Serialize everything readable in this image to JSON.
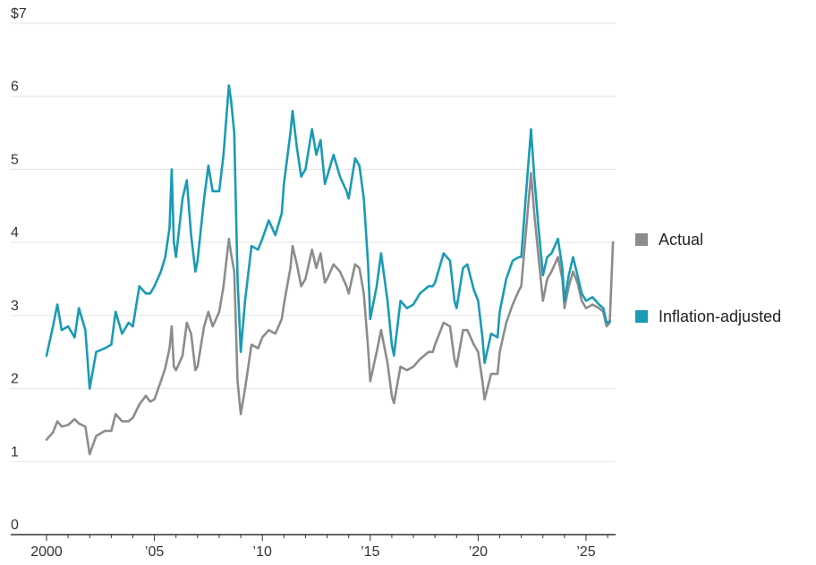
{
  "chart_data": {
    "type": "line",
    "title": "",
    "xlabel": "",
    "ylabel": "",
    "xlim": [
      2000,
      2026.3
    ],
    "ylim": [
      0,
      7
    ],
    "y_ticks": [
      0,
      1,
      2,
      3,
      4,
      5,
      6,
      7
    ],
    "y_tick_labels": [
      "0",
      "1",
      "2",
      "3",
      "4",
      "5",
      "6",
      "$7"
    ],
    "x_ticks": [
      2000,
      2005,
      2010,
      2015,
      2020,
      2025
    ],
    "x_tick_labels": [
      "2000",
      "’05",
      "’10",
      "’15",
      "’20",
      "’25"
    ],
    "grid": "horizontal",
    "legend_position": "right",
    "series": [
      {
        "name": "Actual",
        "color": "#8c8c8c",
        "points": [
          [
            2000.0,
            1.3
          ],
          [
            2000.3,
            1.4
          ],
          [
            2000.5,
            1.55
          ],
          [
            2000.7,
            1.48
          ],
          [
            2001.0,
            1.5
          ],
          [
            2001.3,
            1.58
          ],
          [
            2001.5,
            1.52
          ],
          [
            2001.8,
            1.48
          ],
          [
            2002.0,
            1.1
          ],
          [
            2002.3,
            1.35
          ],
          [
            2002.7,
            1.42
          ],
          [
            2003.0,
            1.42
          ],
          [
            2003.2,
            1.65
          ],
          [
            2003.5,
            1.55
          ],
          [
            2003.8,
            1.55
          ],
          [
            2004.0,
            1.6
          ],
          [
            2004.3,
            1.78
          ],
          [
            2004.6,
            1.9
          ],
          [
            2004.8,
            1.82
          ],
          [
            2005.0,
            1.85
          ],
          [
            2005.3,
            2.1
          ],
          [
            2005.5,
            2.28
          ],
          [
            2005.7,
            2.55
          ],
          [
            2005.8,
            2.85
          ],
          [
            2005.9,
            2.3
          ],
          [
            2006.0,
            2.25
          ],
          [
            2006.3,
            2.45
          ],
          [
            2006.5,
            2.9
          ],
          [
            2006.7,
            2.75
          ],
          [
            2006.9,
            2.25
          ],
          [
            2007.0,
            2.3
          ],
          [
            2007.3,
            2.85
          ],
          [
            2007.5,
            3.05
          ],
          [
            2007.7,
            2.85
          ],
          [
            2008.0,
            3.05
          ],
          [
            2008.2,
            3.4
          ],
          [
            2008.45,
            4.05
          ],
          [
            2008.55,
            3.85
          ],
          [
            2008.7,
            3.6
          ],
          [
            2008.85,
            2.1
          ],
          [
            2009.0,
            1.65
          ],
          [
            2009.2,
            2.0
          ],
          [
            2009.5,
            2.6
          ],
          [
            2009.8,
            2.55
          ],
          [
            2010.0,
            2.7
          ],
          [
            2010.3,
            2.8
          ],
          [
            2010.6,
            2.75
          ],
          [
            2010.9,
            2.95
          ],
          [
            2011.0,
            3.15
          ],
          [
            2011.3,
            3.65
          ],
          [
            2011.4,
            3.95
          ],
          [
            2011.6,
            3.7
          ],
          [
            2011.8,
            3.4
          ],
          [
            2012.0,
            3.5
          ],
          [
            2012.3,
            3.9
          ],
          [
            2012.5,
            3.65
          ],
          [
            2012.7,
            3.85
          ],
          [
            2012.9,
            3.45
          ],
          [
            2013.0,
            3.5
          ],
          [
            2013.3,
            3.7
          ],
          [
            2013.6,
            3.6
          ],
          [
            2013.9,
            3.4
          ],
          [
            2014.0,
            3.3
          ],
          [
            2014.3,
            3.7
          ],
          [
            2014.5,
            3.65
          ],
          [
            2014.7,
            3.3
          ],
          [
            2014.9,
            2.55
          ],
          [
            2015.0,
            2.1
          ],
          [
            2015.3,
            2.5
          ],
          [
            2015.5,
            2.8
          ],
          [
            2015.8,
            2.35
          ],
          [
            2016.0,
            1.9
          ],
          [
            2016.1,
            1.8
          ],
          [
            2016.4,
            2.3
          ],
          [
            2016.7,
            2.25
          ],
          [
            2017.0,
            2.3
          ],
          [
            2017.3,
            2.4
          ],
          [
            2017.7,
            2.5
          ],
          [
            2017.9,
            2.5
          ],
          [
            2018.0,
            2.6
          ],
          [
            2018.4,
            2.9
          ],
          [
            2018.7,
            2.85
          ],
          [
            2018.9,
            2.4
          ],
          [
            2019.0,
            2.3
          ],
          [
            2019.3,
            2.8
          ],
          [
            2019.5,
            2.8
          ],
          [
            2019.8,
            2.6
          ],
          [
            2020.0,
            2.5
          ],
          [
            2020.2,
            2.1
          ],
          [
            2020.3,
            1.85
          ],
          [
            2020.6,
            2.2
          ],
          [
            2020.9,
            2.2
          ],
          [
            2021.0,
            2.5
          ],
          [
            2021.3,
            2.9
          ],
          [
            2021.6,
            3.15
          ],
          [
            2021.9,
            3.35
          ],
          [
            2022.0,
            3.4
          ],
          [
            2022.2,
            4.1
          ],
          [
            2022.45,
            4.95
          ],
          [
            2022.6,
            4.4
          ],
          [
            2022.8,
            3.8
          ],
          [
            2023.0,
            3.2
          ],
          [
            2023.2,
            3.5
          ],
          [
            2023.4,
            3.6
          ],
          [
            2023.7,
            3.8
          ],
          [
            2023.9,
            3.5
          ],
          [
            2024.0,
            3.1
          ],
          [
            2024.2,
            3.4
          ],
          [
            2024.4,
            3.6
          ],
          [
            2024.6,
            3.45
          ],
          [
            2024.8,
            3.2
          ],
          [
            2025.0,
            3.1
          ],
          [
            2025.3,
            3.15
          ],
          [
            2025.6,
            3.1
          ],
          [
            2025.8,
            3.05
          ],
          [
            2025.95,
            2.85
          ],
          [
            2026.1,
            2.9
          ],
          [
            2026.25,
            4.0
          ]
        ]
      },
      {
        "name": "Inflation-adjusted",
        "color": "#1a9bb5",
        "points": [
          [
            2000.0,
            2.45
          ],
          [
            2000.3,
            2.85
          ],
          [
            2000.5,
            3.15
          ],
          [
            2000.7,
            2.8
          ],
          [
            2001.0,
            2.85
          ],
          [
            2001.3,
            2.7
          ],
          [
            2001.5,
            3.1
          ],
          [
            2001.8,
            2.8
          ],
          [
            2002.0,
            2.0
          ],
          [
            2002.3,
            2.5
          ],
          [
            2002.7,
            2.55
          ],
          [
            2003.0,
            2.6
          ],
          [
            2003.2,
            3.05
          ],
          [
            2003.5,
            2.75
          ],
          [
            2003.8,
            2.9
          ],
          [
            2004.0,
            2.85
          ],
          [
            2004.3,
            3.4
          ],
          [
            2004.6,
            3.3
          ],
          [
            2004.8,
            3.3
          ],
          [
            2005.0,
            3.4
          ],
          [
            2005.3,
            3.6
          ],
          [
            2005.5,
            3.8
          ],
          [
            2005.7,
            4.2
          ],
          [
            2005.8,
            5.0
          ],
          [
            2005.9,
            4.0
          ],
          [
            2006.0,
            3.8
          ],
          [
            2006.3,
            4.6
          ],
          [
            2006.5,
            4.85
          ],
          [
            2006.7,
            4.1
          ],
          [
            2006.9,
            3.6
          ],
          [
            2007.0,
            3.75
          ],
          [
            2007.3,
            4.6
          ],
          [
            2007.5,
            5.05
          ],
          [
            2007.7,
            4.7
          ],
          [
            2008.0,
            4.7
          ],
          [
            2008.2,
            5.2
          ],
          [
            2008.45,
            6.15
          ],
          [
            2008.55,
            5.95
          ],
          [
            2008.7,
            5.5
          ],
          [
            2008.85,
            3.5
          ],
          [
            2009.0,
            2.5
          ],
          [
            2009.2,
            3.2
          ],
          [
            2009.5,
            3.95
          ],
          [
            2009.8,
            3.9
          ],
          [
            2010.0,
            4.05
          ],
          [
            2010.3,
            4.3
          ],
          [
            2010.6,
            4.1
          ],
          [
            2010.9,
            4.4
          ],
          [
            2011.0,
            4.8
          ],
          [
            2011.3,
            5.5
          ],
          [
            2011.4,
            5.8
          ],
          [
            2011.6,
            5.3
          ],
          [
            2011.8,
            4.9
          ],
          [
            2012.0,
            5.0
          ],
          [
            2012.3,
            5.55
          ],
          [
            2012.5,
            5.2
          ],
          [
            2012.7,
            5.4
          ],
          [
            2012.9,
            4.8
          ],
          [
            2013.0,
            4.9
          ],
          [
            2013.3,
            5.2
          ],
          [
            2013.6,
            4.9
          ],
          [
            2013.9,
            4.7
          ],
          [
            2014.0,
            4.6
          ],
          [
            2014.3,
            5.15
          ],
          [
            2014.5,
            5.05
          ],
          [
            2014.7,
            4.6
          ],
          [
            2014.9,
            3.7
          ],
          [
            2015.0,
            2.95
          ],
          [
            2015.3,
            3.4
          ],
          [
            2015.5,
            3.85
          ],
          [
            2015.8,
            3.2
          ],
          [
            2016.0,
            2.6
          ],
          [
            2016.1,
            2.45
          ],
          [
            2016.4,
            3.2
          ],
          [
            2016.7,
            3.1
          ],
          [
            2017.0,
            3.15
          ],
          [
            2017.3,
            3.3
          ],
          [
            2017.7,
            3.4
          ],
          [
            2017.9,
            3.4
          ],
          [
            2018.0,
            3.45
          ],
          [
            2018.4,
            3.85
          ],
          [
            2018.7,
            3.75
          ],
          [
            2018.9,
            3.2
          ],
          [
            2019.0,
            3.1
          ],
          [
            2019.3,
            3.65
          ],
          [
            2019.5,
            3.7
          ],
          [
            2019.8,
            3.35
          ],
          [
            2020.0,
            3.2
          ],
          [
            2020.2,
            2.7
          ],
          [
            2020.3,
            2.35
          ],
          [
            2020.6,
            2.75
          ],
          [
            2020.9,
            2.7
          ],
          [
            2021.0,
            3.05
          ],
          [
            2021.3,
            3.5
          ],
          [
            2021.6,
            3.75
          ],
          [
            2021.9,
            3.8
          ],
          [
            2022.0,
            3.8
          ],
          [
            2022.2,
            4.6
          ],
          [
            2022.45,
            5.55
          ],
          [
            2022.6,
            4.9
          ],
          [
            2022.8,
            4.2
          ],
          [
            2023.0,
            3.55
          ],
          [
            2023.2,
            3.8
          ],
          [
            2023.4,
            3.85
          ],
          [
            2023.7,
            4.05
          ],
          [
            2023.9,
            3.65
          ],
          [
            2024.0,
            3.2
          ],
          [
            2024.2,
            3.55
          ],
          [
            2024.4,
            3.8
          ],
          [
            2024.6,
            3.55
          ],
          [
            2024.8,
            3.3
          ],
          [
            2025.0,
            3.2
          ],
          [
            2025.3,
            3.25
          ],
          [
            2025.6,
            3.15
          ],
          [
            2025.8,
            3.1
          ],
          [
            2025.95,
            2.9
          ],
          [
            2026.1,
            2.92
          ]
        ]
      }
    ]
  }
}
